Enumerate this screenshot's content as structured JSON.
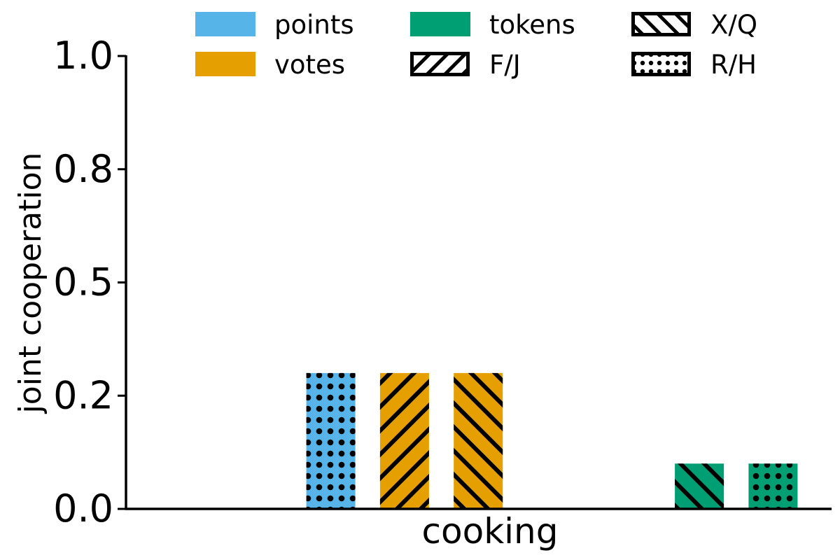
{
  "chart_data": {
    "type": "bar",
    "categories": [
      "cooking"
    ],
    "xlabel": "cooking",
    "ylabel": "joint cooperation",
    "ylim": [
      0,
      1
    ],
    "yticks": [
      0.0,
      0.25,
      0.5,
      0.75,
      1.0
    ],
    "ytick_labels": [
      "0.0",
      "0.2",
      "0.5",
      "0.8",
      "1.0"
    ],
    "grid": false,
    "legend_position": "top",
    "colors": {
      "points": "#56B4E9",
      "votes": "#E69F00",
      "tokens": "#009E73"
    },
    "legend_colors": [
      "points",
      "votes",
      "tokens"
    ],
    "legend_patterns": [
      "F/J",
      "X/Q",
      "R/H"
    ],
    "series": [
      {
        "name": "points",
        "bars": [
          {
            "pattern": "F/J",
            "value": 0.0
          },
          {
            "pattern": "X/Q",
            "value": 0.0
          },
          {
            "pattern": "R/H",
            "value": 0.3
          }
        ]
      },
      {
        "name": "votes",
        "bars": [
          {
            "pattern": "F/J",
            "value": 0.3
          },
          {
            "pattern": "X/Q",
            "value": 0.3
          },
          {
            "pattern": "R/H",
            "value": 0.0
          }
        ]
      },
      {
        "name": "tokens",
        "bars": [
          {
            "pattern": "F/J",
            "value": 0.0
          },
          {
            "pattern": "X/Q",
            "value": 0.1
          },
          {
            "pattern": "R/H",
            "value": 0.1
          }
        ]
      }
    ]
  }
}
